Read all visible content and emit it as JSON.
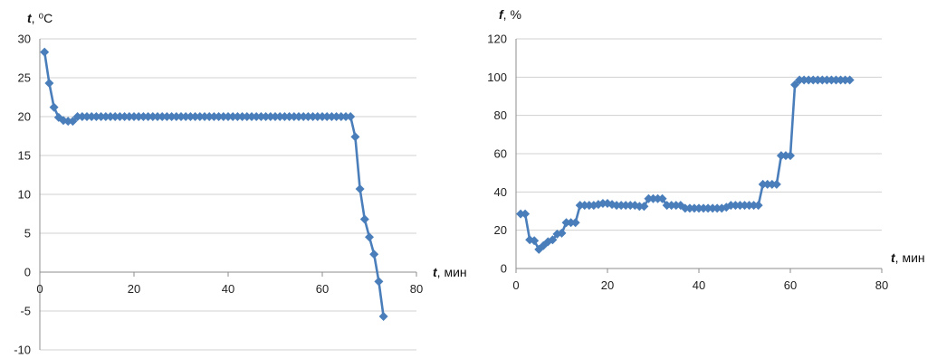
{
  "chart_data": [
    {
      "type": "line",
      "ylabel_var": "t",
      "ylabel_unit": ", ⁰C",
      "xlabel_var": "t",
      "xlabel_unit": ", мин",
      "xlim": [
        0,
        80
      ],
      "ylim": [
        -10,
        30
      ],
      "xticks": [
        0,
        20,
        40,
        60,
        80
      ],
      "yticks": [
        -10,
        -5,
        0,
        5,
        10,
        15,
        20,
        25,
        30
      ],
      "grid": "horizontal",
      "color": "#4a7ebb",
      "marker": "diamond",
      "x": [
        1,
        2,
        3,
        4,
        5,
        6,
        7,
        8,
        9,
        10,
        11,
        12,
        13,
        14,
        15,
        16,
        17,
        18,
        19,
        20,
        21,
        22,
        23,
        24,
        25,
        26,
        27,
        28,
        29,
        30,
        31,
        32,
        33,
        34,
        35,
        36,
        37,
        38,
        39,
        40,
        41,
        42,
        43,
        44,
        45,
        46,
        47,
        48,
        49,
        50,
        51,
        52,
        53,
        54,
        55,
        56,
        57,
        58,
        59,
        60,
        61,
        62,
        63,
        64,
        65,
        66,
        67,
        68,
        69,
        70,
        71,
        72,
        73
      ],
      "y": [
        28.3,
        24.3,
        21.2,
        19.9,
        19.5,
        19.4,
        19.4,
        20.0,
        20.0,
        20.0,
        20.0,
        20.0,
        20.0,
        20.0,
        20.0,
        20.0,
        20.0,
        20.0,
        20.0,
        20.0,
        20.0,
        20.0,
        20.0,
        20.0,
        20.0,
        20.0,
        20.0,
        20.0,
        20.0,
        20.0,
        20.0,
        20.0,
        20.0,
        20.0,
        20.0,
        20.0,
        20.0,
        20.0,
        20.0,
        20.0,
        20.0,
        20.0,
        20.0,
        20.0,
        20.0,
        20.0,
        20.0,
        20.0,
        20.0,
        20.0,
        20.0,
        20.0,
        20.0,
        20.0,
        20.0,
        20.0,
        20.0,
        20.0,
        20.0,
        20.0,
        20.0,
        20.0,
        20.0,
        20.0,
        20.0,
        20.0,
        17.4,
        10.7,
        6.8,
        4.5,
        2.3,
        -1.2,
        -5.7
      ]
    },
    {
      "type": "line",
      "ylabel_var": "f",
      "ylabel_unit": ", %",
      "xlabel_var": "t",
      "xlabel_unit": ", мин",
      "xlim": [
        0,
        80
      ],
      "ylim": [
        0,
        120
      ],
      "xticks": [
        0,
        20,
        40,
        60,
        80
      ],
      "yticks": [
        0,
        20,
        40,
        60,
        80,
        100,
        120
      ],
      "grid": "horizontal",
      "color": "#4a7ebb",
      "marker": "diamond",
      "x": [
        1,
        2,
        3,
        4,
        5,
        6,
        7,
        8,
        9,
        10,
        11,
        12,
        13,
        14,
        15,
        16,
        17,
        18,
        19,
        20,
        21,
        22,
        23,
        24,
        25,
        26,
        27,
        28,
        29,
        30,
        31,
        32,
        33,
        34,
        35,
        36,
        37,
        38,
        39,
        40,
        41,
        42,
        43,
        44,
        45,
        46,
        47,
        48,
        49,
        50,
        51,
        52,
        53,
        54,
        55,
        56,
        57,
        58,
        59,
        60,
        61,
        62,
        63,
        64,
        65,
        66,
        67,
        68,
        69,
        70,
        71,
        72,
        73
      ],
      "y": [
        28.5,
        28.5,
        15.0,
        14.5,
        10.0,
        12.0,
        14.0,
        15.0,
        18.0,
        18.5,
        24.0,
        24.0,
        24.0,
        33.0,
        33.0,
        33.0,
        33.0,
        33.5,
        34.0,
        34.0,
        33.5,
        33.0,
        33.0,
        33.0,
        33.0,
        33.0,
        32.5,
        32.5,
        36.5,
        36.5,
        36.5,
        36.5,
        33.0,
        33.0,
        33.0,
        33.0,
        31.5,
        31.5,
        31.5,
        31.5,
        31.5,
        31.5,
        31.5,
        31.5,
        31.5,
        32.0,
        33.0,
        33.0,
        33.0,
        33.0,
        33.0,
        33.0,
        33.0,
        44.0,
        44.0,
        44.0,
        44.0,
        59.0,
        59.0,
        59.0,
        96.0,
        98.5,
        98.5,
        98.5,
        98.5,
        98.5,
        98.5,
        98.5,
        98.5,
        98.5,
        98.5,
        98.5,
        98.5
      ]
    }
  ]
}
